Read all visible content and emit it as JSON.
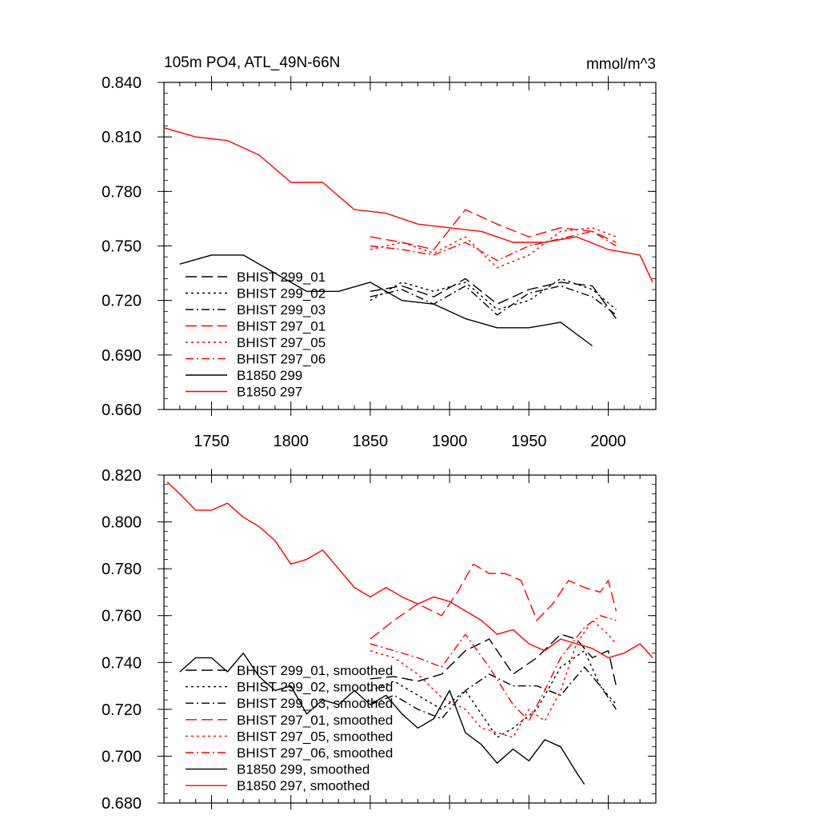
{
  "charts": [
    {
      "title": "105m PO4, ATL_49N-66N",
      "units": "mmol/m^3",
      "xlim": [
        1720,
        2030
      ],
      "ylim": [
        0.66,
        0.84
      ],
      "xticks": [
        "1750",
        "1800",
        "1850",
        "1900",
        "1950",
        "2000"
      ],
      "yticks": [
        "0.660",
        "0.690",
        "0.720",
        "0.750",
        "0.780",
        "0.810",
        "0.840"
      ],
      "legend": [
        "BHIST 299_01",
        "BHIST 299_02",
        "BHIST 299_03",
        "BHIST 297_01",
        "BHIST 297_05",
        "BHIST 297_06",
        "B1850 299",
        "B1850 297"
      ]
    },
    {
      "title": "",
      "units": "",
      "xlim": [
        1720,
        2030
      ],
      "ylim": [
        0.68,
        0.82
      ],
      "xticks": [],
      "yticks": [
        "0.680",
        "0.700",
        "0.720",
        "0.740",
        "0.760",
        "0.780",
        "0.800",
        "0.820"
      ],
      "legend": [
        "BHIST 299_01, smoothed",
        "BHIST 299_02, smoothed",
        "BHIST 299_03, smoothed",
        "BHIST 297_01, smoothed",
        "BHIST 297_05, smoothed",
        "BHIST 297_06, smoothed",
        "B1850 299, smoothed",
        "B1850 297, smoothed"
      ]
    }
  ],
  "colors": {
    "black": "#000000",
    "red": "#ff0000"
  },
  "chart_data": [
    {
      "type": "line",
      "title": "105m PO4, ATL_49N-66N",
      "ylabel": "mmol/m^3",
      "xlim": [
        1720,
        2030
      ],
      "ylim": [
        0.66,
        0.84
      ],
      "series": [
        {
          "name": "BHIST 299_01",
          "color": "#000000",
          "dash": "longdash",
          "x": [
            1850,
            1870,
            1890,
            1910,
            1930,
            1950,
            1970,
            1990,
            2005
          ],
          "y": [
            0.725,
            0.728,
            0.722,
            0.732,
            0.718,
            0.726,
            0.73,
            0.728,
            0.71
          ]
        },
        {
          "name": "BHIST 299_02",
          "color": "#000000",
          "dash": "dot",
          "x": [
            1850,
            1870,
            1890,
            1910,
            1930,
            1950,
            1970,
            1990,
            2005
          ],
          "y": [
            0.72,
            0.73,
            0.725,
            0.73,
            0.715,
            0.72,
            0.732,
            0.726,
            0.715
          ]
        },
        {
          "name": "BHIST 299_03",
          "color": "#000000",
          "dash": "dashdot",
          "x": [
            1850,
            1870,
            1890,
            1910,
            1930,
            1950,
            1970,
            1990,
            2005
          ],
          "y": [
            0.722,
            0.726,
            0.718,
            0.728,
            0.712,
            0.724,
            0.728,
            0.722,
            0.712
          ]
        },
        {
          "name": "BHIST 297_01",
          "color": "#ff0000",
          "dash": "longdash",
          "x": [
            1850,
            1870,
            1890,
            1910,
            1930,
            1950,
            1970,
            1990,
            2005
          ],
          "y": [
            0.755,
            0.752,
            0.748,
            0.77,
            0.762,
            0.755,
            0.76,
            0.758,
            0.752
          ]
        },
        {
          "name": "BHIST 297_05",
          "color": "#ff0000",
          "dash": "dot",
          "x": [
            1850,
            1870,
            1890,
            1910,
            1930,
            1950,
            1970,
            1990,
            2005
          ],
          "y": [
            0.748,
            0.752,
            0.746,
            0.755,
            0.738,
            0.745,
            0.758,
            0.76,
            0.755
          ]
        },
        {
          "name": "BHIST 297_06",
          "color": "#ff0000",
          "dash": "dashdot",
          "x": [
            1850,
            1870,
            1890,
            1910,
            1930,
            1950,
            1970,
            1990,
            2005
          ],
          "y": [
            0.75,
            0.748,
            0.745,
            0.752,
            0.742,
            0.75,
            0.754,
            0.758,
            0.75
          ]
        },
        {
          "name": "B1850 299",
          "color": "#000000",
          "dash": "solid",
          "x": [
            1730,
            1750,
            1770,
            1790,
            1810,
            1830,
            1850,
            1870,
            1890,
            1910,
            1930,
            1950,
            1970,
            1990
          ],
          "y": [
            0.74,
            0.745,
            0.745,
            0.735,
            0.725,
            0.725,
            0.73,
            0.72,
            0.718,
            0.71,
            0.705,
            0.705,
            0.708,
            0.695
          ]
        },
        {
          "name": "B1850 297",
          "color": "#ff0000",
          "dash": "solid",
          "x": [
            1720,
            1740,
            1760,
            1780,
            1800,
            1820,
            1840,
            1860,
            1880,
            1900,
            1920,
            1940,
            1960,
            1980,
            2000,
            2020,
            2028
          ],
          "y": [
            0.815,
            0.81,
            0.808,
            0.8,
            0.785,
            0.785,
            0.77,
            0.768,
            0.762,
            0.76,
            0.758,
            0.752,
            0.752,
            0.755,
            0.748,
            0.745,
            0.73
          ]
        }
      ]
    },
    {
      "type": "line",
      "xlim": [
        1720,
        2030
      ],
      "ylim": [
        0.68,
        0.82
      ],
      "series": [
        {
          "name": "BHIST 299_01, smoothed",
          "color": "#000000",
          "dash": "longdash",
          "x": [
            1850,
            1865,
            1880,
            1895,
            1910,
            1925,
            1940,
            1955,
            1970,
            1980,
            1990,
            2000,
            2005
          ],
          "y": [
            0.733,
            0.734,
            0.732,
            0.735,
            0.745,
            0.75,
            0.735,
            0.742,
            0.752,
            0.75,
            0.742,
            0.745,
            0.73
          ]
        },
        {
          "name": "BHIST 299_02, smoothed",
          "color": "#000000",
          "dash": "dot",
          "x": [
            1850,
            1865,
            1880,
            1895,
            1910,
            1920,
            1930,
            1940,
            1955,
            1970,
            1985,
            1995,
            2005
          ],
          "y": [
            0.728,
            0.732,
            0.726,
            0.72,
            0.728,
            0.718,
            0.708,
            0.712,
            0.72,
            0.738,
            0.745,
            0.73,
            0.722
          ]
        },
        {
          "name": "BHIST 299_03, smoothed",
          "color": "#000000",
          "dash": "dashdot",
          "x": [
            1850,
            1865,
            1880,
            1895,
            1910,
            1925,
            1940,
            1955,
            1970,
            1985,
            1995,
            2005
          ],
          "y": [
            0.722,
            0.726,
            0.72,
            0.716,
            0.728,
            0.735,
            0.73,
            0.73,
            0.726,
            0.738,
            0.73,
            0.72
          ]
        },
        {
          "name": "BHIST 297_01, smoothed",
          "color": "#ff0000",
          "dash": "longdash",
          "x": [
            1850,
            1865,
            1880,
            1895,
            1905,
            1915,
            1925,
            1935,
            1945,
            1955,
            1965,
            1975,
            1985,
            1995,
            2000,
            2005
          ],
          "y": [
            0.75,
            0.758,
            0.765,
            0.76,
            0.77,
            0.782,
            0.778,
            0.778,
            0.775,
            0.758,
            0.765,
            0.775,
            0.772,
            0.77,
            0.775,
            0.762
          ]
        },
        {
          "name": "BHIST 297_05, smoothed",
          "color": "#ff0000",
          "dash": "dot",
          "x": [
            1850,
            1865,
            1880,
            1895,
            1910,
            1920,
            1930,
            1940,
            1950,
            1960,
            1970,
            1980,
            1990,
            2000,
            2005
          ],
          "y": [
            0.745,
            0.742,
            0.735,
            0.725,
            0.72,
            0.712,
            0.71,
            0.708,
            0.72,
            0.715,
            0.728,
            0.748,
            0.758,
            0.752,
            0.748
          ]
        },
        {
          "name": "BHIST 297_06, smoothed",
          "color": "#ff0000",
          "dash": "dashdot",
          "x": [
            1850,
            1865,
            1880,
            1895,
            1910,
            1925,
            1940,
            1950,
            1960,
            1970,
            1985,
            1995,
            2005
          ],
          "y": [
            0.748,
            0.745,
            0.742,
            0.738,
            0.752,
            0.738,
            0.722,
            0.715,
            0.728,
            0.742,
            0.755,
            0.76,
            0.758
          ]
        },
        {
          "name": "B1850 299, smoothed",
          "color": "#000000",
          "dash": "solid",
          "x": [
            1730,
            1740,
            1750,
            1760,
            1770,
            1780,
            1790,
            1800,
            1810,
            1820,
            1830,
            1840,
            1850,
            1860,
            1870,
            1880,
            1890,
            1900,
            1910,
            1920,
            1930,
            1940,
            1950,
            1960,
            1970,
            1980,
            1985
          ],
          "y": [
            0.736,
            0.742,
            0.742,
            0.736,
            0.744,
            0.734,
            0.728,
            0.73,
            0.718,
            0.724,
            0.722,
            0.728,
            0.722,
            0.726,
            0.718,
            0.712,
            0.716,
            0.728,
            0.71,
            0.705,
            0.697,
            0.703,
            0.698,
            0.707,
            0.704,
            0.693,
            0.688
          ]
        },
        {
          "name": "B1850 297, smoothed",
          "color": "#ff0000",
          "dash": "solid",
          "x": [
            1722,
            1730,
            1740,
            1750,
            1760,
            1770,
            1780,
            1790,
            1800,
            1810,
            1820,
            1830,
            1840,
            1850,
            1860,
            1870,
            1880,
            1890,
            1900,
            1910,
            1920,
            1930,
            1940,
            1950,
            1960,
            1970,
            1980,
            1990,
            2000,
            2010,
            2020,
            2028
          ],
          "y": [
            0.817,
            0.812,
            0.805,
            0.805,
            0.808,
            0.802,
            0.798,
            0.792,
            0.782,
            0.784,
            0.788,
            0.78,
            0.772,
            0.768,
            0.772,
            0.768,
            0.765,
            0.768,
            0.766,
            0.762,
            0.758,
            0.752,
            0.754,
            0.748,
            0.745,
            0.75,
            0.748,
            0.746,
            0.742,
            0.744,
            0.748,
            0.742
          ]
        }
      ]
    }
  ]
}
